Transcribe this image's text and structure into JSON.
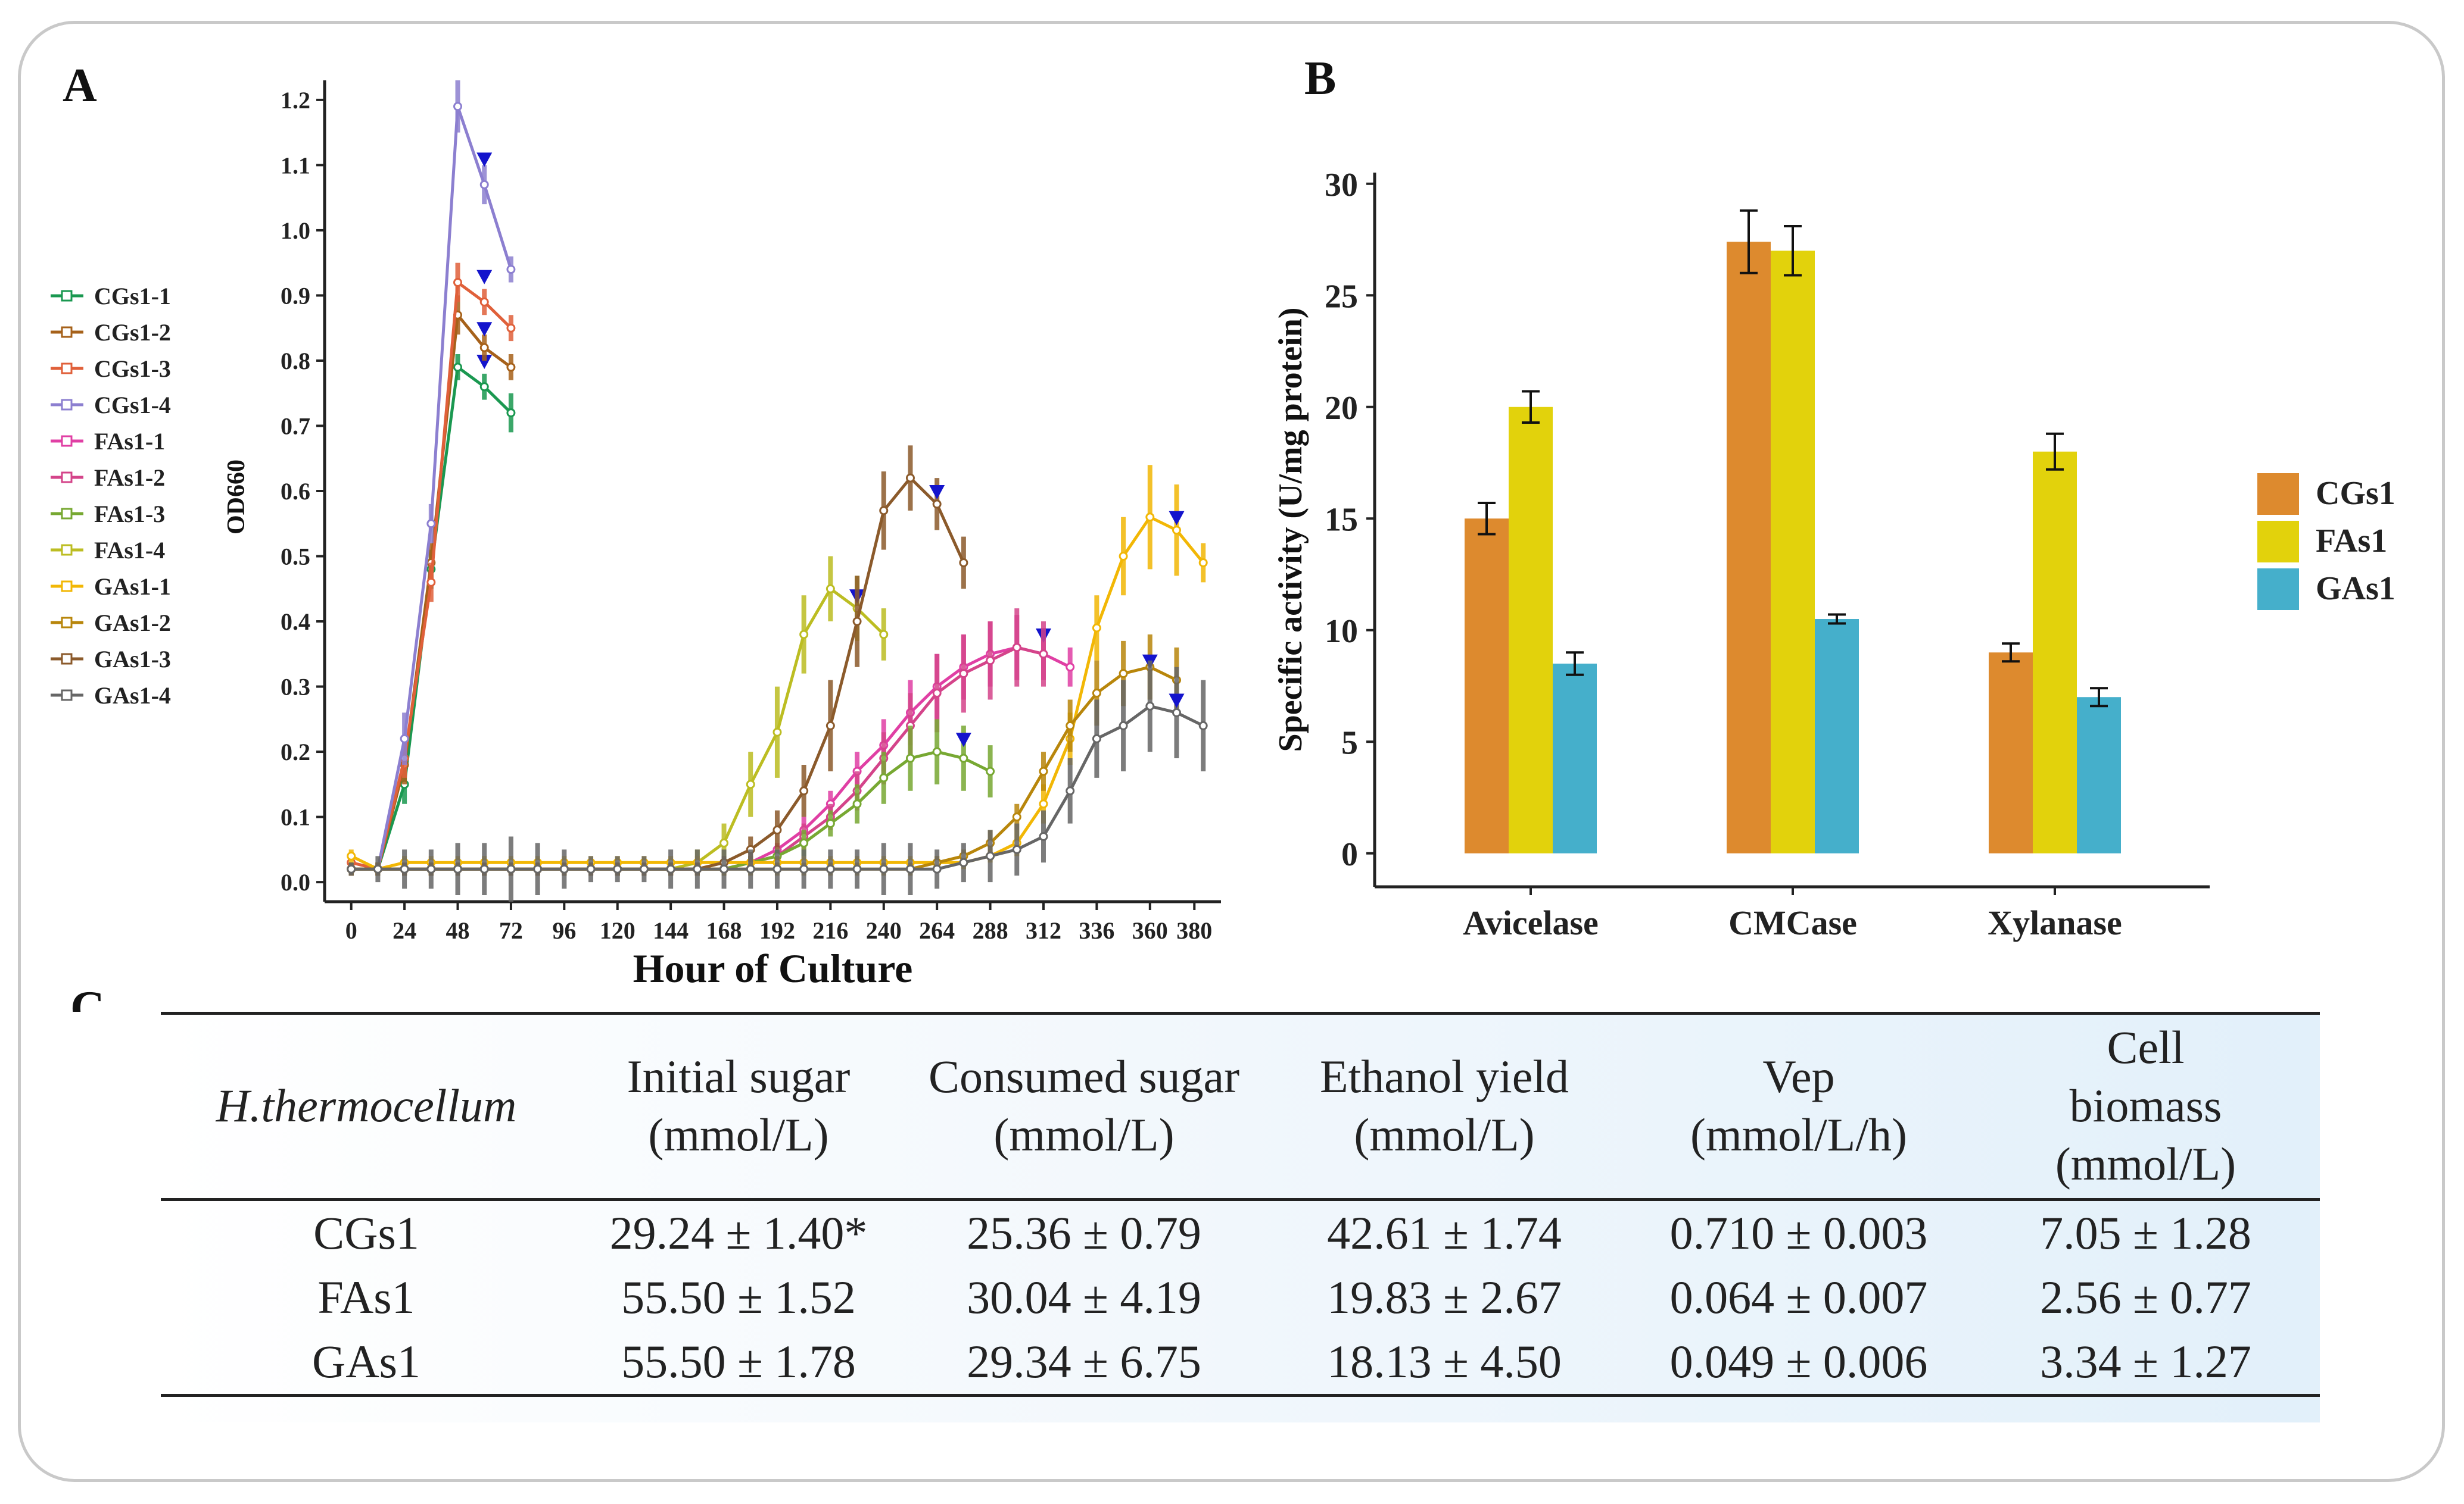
{
  "panel_labels": {
    "a": "A",
    "b": "B",
    "c": "C"
  },
  "colors": {
    "CGs1-1": "#1a9850",
    "CGs1-2": "#a6611a",
    "CGs1-3": "#e0603a",
    "CGs1-4": "#8c7fd0",
    "FAs1-1": "#e03fa4",
    "FAs1-2": "#d4448a",
    "FAs1-3": "#77a832",
    "FAs1-4": "#bcbd22",
    "GAs1-1": "#f2b705",
    "GAs1-2": "#b8860b",
    "GAs1-3": "#8b5a2b",
    "GAs1-4": "#666666",
    "bar_CGs1": "#dd8a2e",
    "bar_FAs1": "#e2d20c",
    "bar_GAs1": "#45afcb",
    "marker": "#1414cc"
  },
  "chart_data": [
    {
      "type": "line",
      "title": "",
      "xlabel": "Hour of Culture",
      "ylabel": "OD660",
      "xlim": [
        -12,
        392
      ],
      "ylim": [
        -0.03,
        1.23
      ],
      "xticks": [
        "0",
        "24",
        "48",
        "72",
        "96",
        "120",
        "144",
        "168",
        "192",
        "216",
        "240",
        "264",
        "288",
        "312",
        "336",
        "360",
        "380"
      ],
      "yticks": [
        "0.0",
        "0.1",
        "0.2",
        "0.3",
        "0.4",
        "0.5",
        "0.6",
        "0.7",
        "0.8",
        "0.9",
        "1.0",
        "1.1",
        "1.2"
      ],
      "legend": [
        "CGs1-1",
        "CGs1-2",
        "CGs1-3",
        "CGs1-4",
        "FAs1-1",
        "FAs1-2",
        "FAs1-3",
        "FAs1-4",
        "GAs1-1",
        "GAs1-2",
        "GAs1-3",
        "GAs1-4"
      ],
      "series": [
        {
          "name": "CGs1-1",
          "x": [
            0,
            12,
            24,
            36,
            48,
            60,
            72
          ],
          "y": [
            0.02,
            0.02,
            0.15,
            0.48,
            0.79,
            0.76,
            0.72
          ],
          "err": [
            0.01,
            0.01,
            0.03,
            0.03,
            0.02,
            0.02,
            0.03
          ],
          "marker_at": [
            60,
            0.8
          ]
        },
        {
          "name": "CGs1-2",
          "x": [
            0,
            12,
            24,
            36,
            48,
            60,
            72
          ],
          "y": [
            0.02,
            0.02,
            0.18,
            0.49,
            0.87,
            0.82,
            0.79
          ],
          "err": [
            0.01,
            0.01,
            0.03,
            0.03,
            0.03,
            0.02,
            0.02
          ],
          "marker_at": [
            60,
            0.85
          ]
        },
        {
          "name": "CGs1-3",
          "x": [
            0,
            12,
            24,
            36,
            48,
            60,
            72
          ],
          "y": [
            0.03,
            0.02,
            0.19,
            0.46,
            0.92,
            0.89,
            0.85
          ],
          "err": [
            0.01,
            0.01,
            0.03,
            0.03,
            0.03,
            0.02,
            0.02
          ],
          "marker_at": [
            60,
            0.93
          ]
        },
        {
          "name": "CGs1-4",
          "x": [
            0,
            12,
            24,
            36,
            48,
            60,
            72
          ],
          "y": [
            0.02,
            0.02,
            0.22,
            0.55,
            1.19,
            1.07,
            0.94
          ],
          "err": [
            0.01,
            0.01,
            0.04,
            0.03,
            0.04,
            0.03,
            0.02
          ],
          "marker_at": [
            60,
            1.11
          ]
        },
        {
          "name": "FAs1-1",
          "x": [
            0,
            12,
            24,
            36,
            48,
            60,
            72,
            84,
            96,
            108,
            120,
            132,
            144,
            156,
            168,
            180,
            192,
            204,
            216,
            228,
            240,
            252,
            264,
            276,
            288,
            300,
            312,
            324
          ],
          "y": [
            0.02,
            0.02,
            0.02,
            0.02,
            0.02,
            0.02,
            0.02,
            0.02,
            0.02,
            0.02,
            0.02,
            0.02,
            0.02,
            0.02,
            0.02,
            0.03,
            0.05,
            0.08,
            0.12,
            0.17,
            0.21,
            0.26,
            0.3,
            0.33,
            0.35,
            0.36,
            0.35,
            0.33
          ],
          "err": [
            0.01,
            0.01,
            0.01,
            0.01,
            0.01,
            0.01,
            0.01,
            0.01,
            0.01,
            0.01,
            0.01,
            0.01,
            0.01,
            0.01,
            0.01,
            0.01,
            0.01,
            0.02,
            0.02,
            0.03,
            0.04,
            0.05,
            0.05,
            0.05,
            0.05,
            0.05,
            0.04,
            0.03
          ],
          "marker_at": [
            312,
            0.38
          ]
        },
        {
          "name": "FAs1-2",
          "x": [
            0,
            12,
            24,
            36,
            48,
            60,
            72,
            84,
            96,
            108,
            120,
            132,
            144,
            156,
            168,
            180,
            192,
            204,
            216,
            228,
            240,
            252,
            264,
            276,
            288,
            300,
            312
          ],
          "y": [
            0.02,
            0.02,
            0.02,
            0.02,
            0.02,
            0.02,
            0.02,
            0.02,
            0.02,
            0.02,
            0.02,
            0.02,
            0.02,
            0.02,
            0.02,
            0.03,
            0.04,
            0.07,
            0.1,
            0.14,
            0.19,
            0.24,
            0.29,
            0.32,
            0.34,
            0.36,
            0.35
          ],
          "err": [
            0.01,
            0.01,
            0.01,
            0.01,
            0.01,
            0.01,
            0.01,
            0.01,
            0.01,
            0.01,
            0.01,
            0.01,
            0.01,
            0.01,
            0.01,
            0.01,
            0.01,
            0.02,
            0.02,
            0.03,
            0.04,
            0.05,
            0.06,
            0.06,
            0.06,
            0.06,
            0.05
          ],
          "marker_at": null
        },
        {
          "name": "FAs1-3",
          "x": [
            0,
            12,
            24,
            36,
            48,
            60,
            72,
            84,
            96,
            108,
            120,
            132,
            144,
            156,
            168,
            180,
            192,
            204,
            216,
            228,
            240,
            252,
            264,
            276,
            288
          ],
          "y": [
            0.02,
            0.02,
            0.02,
            0.02,
            0.02,
            0.02,
            0.02,
            0.02,
            0.02,
            0.02,
            0.02,
            0.02,
            0.02,
            0.02,
            0.02,
            0.03,
            0.04,
            0.06,
            0.09,
            0.12,
            0.16,
            0.19,
            0.2,
            0.19,
            0.17
          ],
          "err": [
            0.01,
            0.01,
            0.01,
            0.01,
            0.01,
            0.01,
            0.01,
            0.01,
            0.01,
            0.01,
            0.01,
            0.01,
            0.01,
            0.01,
            0.01,
            0.01,
            0.01,
            0.02,
            0.02,
            0.03,
            0.04,
            0.05,
            0.05,
            0.05,
            0.04
          ],
          "marker_at": [
            276,
            0.22
          ]
        },
        {
          "name": "FAs1-4",
          "x": [
            0,
            12,
            24,
            36,
            48,
            60,
            72,
            84,
            96,
            108,
            120,
            132,
            144,
            156,
            168,
            180,
            192,
            204,
            216,
            228,
            240
          ],
          "y": [
            0.02,
            0.02,
            0.02,
            0.02,
            0.02,
            0.02,
            0.02,
            0.02,
            0.02,
            0.02,
            0.02,
            0.02,
            0.02,
            0.03,
            0.06,
            0.15,
            0.23,
            0.38,
            0.45,
            0.42,
            0.38
          ],
          "err": [
            0.01,
            0.01,
            0.01,
            0.01,
            0.01,
            0.01,
            0.01,
            0.01,
            0.01,
            0.01,
            0.01,
            0.01,
            0.01,
            0.02,
            0.03,
            0.05,
            0.07,
            0.06,
            0.05,
            0.05,
            0.04
          ],
          "marker_at": [
            228,
            0.44
          ]
        },
        {
          "name": "GAs1-1",
          "x": [
            0,
            12,
            24,
            36,
            48,
            60,
            72,
            84,
            96,
            108,
            120,
            132,
            144,
            156,
            168,
            180,
            192,
            204,
            216,
            228,
            240,
            252,
            264,
            276,
            288,
            300,
            312,
            324,
            336,
            348,
            360,
            372,
            384
          ],
          "y": [
            0.04,
            0.02,
            0.03,
            0.03,
            0.03,
            0.03,
            0.03,
            0.03,
            0.03,
            0.03,
            0.03,
            0.03,
            0.03,
            0.03,
            0.03,
            0.03,
            0.03,
            0.03,
            0.03,
            0.03,
            0.03,
            0.03,
            0.03,
            0.03,
            0.04,
            0.06,
            0.12,
            0.22,
            0.39,
            0.5,
            0.56,
            0.54,
            0.49
          ],
          "err": [
            0.01,
            0.01,
            0.01,
            0.01,
            0.01,
            0.01,
            0.01,
            0.01,
            0.01,
            0.01,
            0.01,
            0.01,
            0.01,
            0.01,
            0.01,
            0.01,
            0.01,
            0.01,
            0.01,
            0.01,
            0.01,
            0.01,
            0.01,
            0.01,
            0.01,
            0.02,
            0.03,
            0.04,
            0.05,
            0.06,
            0.08,
            0.07,
            0.03
          ],
          "marker_at": [
            372,
            0.56
          ]
        },
        {
          "name": "GAs1-2",
          "x": [
            0,
            12,
            24,
            36,
            48,
            60,
            72,
            84,
            96,
            108,
            120,
            132,
            144,
            156,
            168,
            180,
            192,
            204,
            216,
            228,
            240,
            252,
            264,
            276,
            288,
            300,
            312,
            324,
            336,
            348,
            360,
            372
          ],
          "y": [
            0.02,
            0.02,
            0.02,
            0.02,
            0.02,
            0.02,
            0.02,
            0.02,
            0.02,
            0.02,
            0.02,
            0.02,
            0.02,
            0.02,
            0.02,
            0.02,
            0.02,
            0.02,
            0.02,
            0.02,
            0.02,
            0.02,
            0.03,
            0.04,
            0.06,
            0.1,
            0.17,
            0.24,
            0.29,
            0.32,
            0.33,
            0.31
          ],
          "err": [
            0.01,
            0.01,
            0.01,
            0.01,
            0.01,
            0.01,
            0.01,
            0.01,
            0.01,
            0.01,
            0.01,
            0.01,
            0.01,
            0.01,
            0.01,
            0.01,
            0.01,
            0.01,
            0.01,
            0.01,
            0.01,
            0.01,
            0.01,
            0.01,
            0.02,
            0.02,
            0.03,
            0.04,
            0.05,
            0.05,
            0.05,
            0.05
          ],
          "marker_at": [
            360,
            0.34
          ]
        },
        {
          "name": "GAs1-3",
          "x": [
            0,
            12,
            24,
            36,
            48,
            60,
            72,
            84,
            96,
            108,
            120,
            132,
            144,
            156,
            168,
            180,
            192,
            204,
            216,
            228,
            240,
            252,
            264,
            276
          ],
          "y": [
            0.02,
            0.02,
            0.02,
            0.02,
            0.02,
            0.02,
            0.02,
            0.02,
            0.02,
            0.02,
            0.02,
            0.02,
            0.02,
            0.02,
            0.03,
            0.05,
            0.08,
            0.14,
            0.24,
            0.4,
            0.57,
            0.62,
            0.58,
            0.49
          ],
          "err": [
            0.01,
            0.01,
            0.01,
            0.01,
            0.01,
            0.01,
            0.01,
            0.01,
            0.01,
            0.01,
            0.01,
            0.01,
            0.01,
            0.01,
            0.01,
            0.02,
            0.03,
            0.04,
            0.07,
            0.07,
            0.06,
            0.05,
            0.04,
            0.04
          ],
          "marker_at": [
            264,
            0.6
          ]
        },
        {
          "name": "GAs1-4",
          "x": [
            0,
            12,
            24,
            36,
            48,
            60,
            72,
            84,
            96,
            108,
            120,
            132,
            144,
            156,
            168,
            180,
            192,
            204,
            216,
            228,
            240,
            252,
            264,
            276,
            288,
            300,
            312,
            324,
            336,
            348,
            360,
            372,
            384
          ],
          "y": [
            0.02,
            0.02,
            0.02,
            0.02,
            0.02,
            0.02,
            0.02,
            0.02,
            0.02,
            0.02,
            0.02,
            0.02,
            0.02,
            0.02,
            0.02,
            0.02,
            0.02,
            0.02,
            0.02,
            0.02,
            0.02,
            0.02,
            0.02,
            0.03,
            0.04,
            0.05,
            0.07,
            0.14,
            0.22,
            0.24,
            0.27,
            0.26,
            0.24
          ],
          "err": [
            0.01,
            0.02,
            0.03,
            0.03,
            0.04,
            0.04,
            0.05,
            0.04,
            0.03,
            0.02,
            0.02,
            0.02,
            0.03,
            0.03,
            0.03,
            0.03,
            0.03,
            0.03,
            0.03,
            0.03,
            0.04,
            0.04,
            0.03,
            0.03,
            0.04,
            0.04,
            0.04,
            0.05,
            0.06,
            0.07,
            0.07,
            0.07,
            0.07
          ],
          "marker_at": [
            372,
            0.28
          ]
        }
      ]
    },
    {
      "type": "bar",
      "title": "",
      "xlabel": "",
      "ylabel": "Specific activity (U/mg protein)",
      "ylim": [
        -1.5,
        30.5
      ],
      "yticks": [
        "0",
        "5",
        "10",
        "15",
        "20",
        "25",
        "30"
      ],
      "categories": [
        "Avicelase",
        "CMCase",
        "Xylanase"
      ],
      "legend": [
        "CGs1",
        "FAs1",
        "GAs1"
      ],
      "series": [
        {
          "name": "CGs1",
          "values": [
            15.0,
            27.4,
            9.0
          ],
          "err": [
            0.7,
            1.4,
            0.4
          ]
        },
        {
          "name": "FAs1",
          "values": [
            20.0,
            27.0,
            18.0
          ],
          "err": [
            0.7,
            1.1,
            0.8
          ]
        },
        {
          "name": "GAs1",
          "values": [
            8.5,
            10.5,
            7.0
          ],
          "err": [
            0.5,
            0.2,
            0.4
          ]
        }
      ]
    },
    {
      "type": "table",
      "headers": [
        "H.thermocellum",
        "Initial sugar (mmol/L)",
        "Consumed sugar (mmol/L)",
        "Ethanol yield (mmol/L)",
        "Vep (mmol/L/h)",
        "Cell biomass (mmol/L)"
      ],
      "rows": [
        [
          "CGs1",
          "29.24 ± 1.40*",
          "25.36 ± 0.79",
          "42.61 ± 1.74",
          "0.710 ± 0.003",
          "7.05 ± 1.28"
        ],
        [
          "FAs1",
          "55.50 ± 1.52",
          "30.04 ± 4.19",
          "19.83 ± 2.67",
          "0.064 ± 0.007",
          "2.56 ± 0.77"
        ],
        [
          "GAs1",
          "55.50 ± 1.78",
          "29.34 ± 6.75",
          "18.13 ± 4.50",
          "0.049 ± 0.006",
          "3.34 ± 1.27"
        ]
      ]
    }
  ]
}
